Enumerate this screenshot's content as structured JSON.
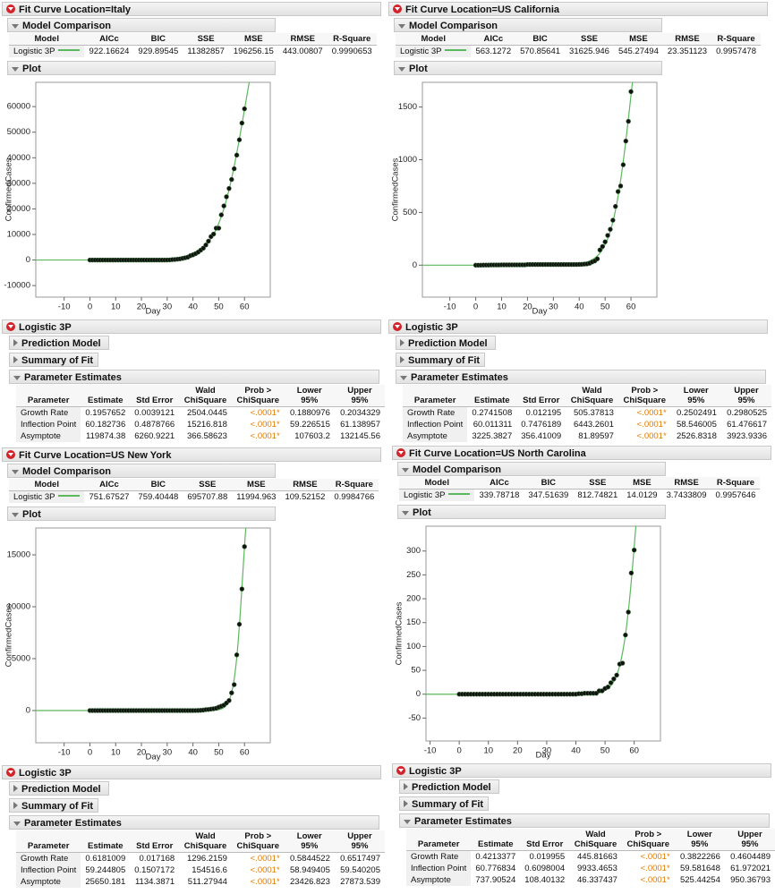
{
  "panels": [
    {
      "title": "Fit Curve Location=Italy",
      "model_comparison": {
        "title": "Model Comparison",
        "columns": [
          "Model",
          "AICc",
          "BIC",
          "SSE",
          "MSE",
          "RMSE",
          "R-Square"
        ],
        "rows": [
          [
            "Logistic 3P",
            922.16624,
            929.89545,
            11382857,
            196256.15,
            443.00807,
            0.9990653
          ]
        ]
      },
      "plot_title": "Plot",
      "fit_title": "Logistic 3P",
      "collapsed": [
        "Prediction Model",
        "Summary of Fit"
      ],
      "estimates": {
        "title": "Parameter Estimates",
        "columns": [
          "Parameter",
          "Estimate",
          "Std Error",
          "Wald ChiSquare",
          "Prob > ChiSquare",
          "Lower 95%",
          "Upper 95%"
        ],
        "rows": [
          [
            "Growth Rate",
            0.1957652,
            0.0039121,
            2504.0445,
            "<.0001*",
            0.1880976,
            0.2034329
          ],
          [
            "Inflection Point",
            60.182736,
            0.4878766,
            15216.818,
            "<.0001*",
            59.226515,
            61.138957
          ],
          [
            "Asymptote",
            119874.38,
            6260.9221,
            366.58623,
            "<.0001*",
            107603.2,
            132145.56
          ]
        ]
      },
      "chart_data": {
        "type": "scatter",
        "x_label": "Day",
        "y_label": "ConfirmedCases",
        "color": "#111111",
        "edge_color": "#2f5f2f",
        "curve_color": "#5cb85c",
        "xlim": [
          -21,
          70
        ],
        "ylim": [
          -14500,
          69500
        ],
        "xticks": [
          -10,
          0,
          10,
          20,
          30,
          40,
          50,
          60
        ],
        "yticks": [
          -10000,
          0,
          10000,
          20000,
          30000,
          40000,
          50000,
          60000
        ],
        "x": [
          0,
          1,
          2,
          3,
          4,
          5,
          6,
          7,
          8,
          9,
          10,
          11,
          12,
          13,
          14,
          15,
          16,
          17,
          18,
          19,
          20,
          21,
          22,
          23,
          24,
          25,
          26,
          27,
          28,
          29,
          30,
          31,
          32,
          33,
          34,
          35,
          36,
          37,
          38,
          39,
          40,
          41,
          42,
          43,
          44,
          45,
          46,
          47,
          48,
          49,
          50,
          51,
          52,
          53,
          54,
          55,
          56,
          57,
          58,
          59,
          60
        ],
        "values": [
          0,
          0,
          0,
          0,
          0,
          0,
          0,
          0,
          0,
          2,
          2,
          2,
          2,
          2,
          2,
          2,
          2,
          2,
          2,
          2,
          2,
          2,
          2,
          3,
          3,
          3,
          3,
          3,
          3,
          3,
          20,
          62,
          155,
          229,
          322,
          453,
          655,
          888,
          1128,
          1694,
          2036,
          2502,
          3089,
          3858,
          4636,
          5883,
          7375,
          9172,
          10149,
          12462,
          12462,
          17660,
          21157,
          24747,
          27980,
          31506,
          35713,
          41035,
          47021,
          53578,
          59138
        ]
      }
    },
    {
      "title": "Fit Curve Location=US California",
      "model_comparison": {
        "title": "Model Comparison",
        "columns": [
          "Model",
          "AICc",
          "BIC",
          "SSE",
          "MSE",
          "RMSE",
          "R-Square"
        ],
        "rows": [
          [
            "Logistic 3P",
            563.1272,
            570.85641,
            31625.946,
            545.27494,
            23.351123,
            0.9957478
          ]
        ]
      },
      "plot_title": "Plot",
      "fit_title": "Logistic 3P",
      "collapsed": [
        "Prediction Model",
        "Summary of Fit"
      ],
      "estimates": {
        "title": "Parameter Estimates",
        "columns": [
          "Parameter",
          "Estimate",
          "Std Error",
          "Wald ChiSquare",
          "Prob > ChiSquare",
          "Lower 95%",
          "Upper 95%"
        ],
        "rows": [
          [
            "Growth Rate",
            0.2741508,
            0.012195,
            505.37813,
            "<.0001*",
            0.2502491,
            0.2980525
          ],
          [
            "Inflection Point",
            60.011311,
            0.7476189,
            6443.2601,
            "<.0001*",
            58.546005,
            61.476617
          ],
          [
            "Asymptote",
            3225.3827,
            356.41009,
            81.89597,
            "<.0001*",
            2526.8318,
            3923.9336
          ]
        ]
      },
      "chart_data": {
        "type": "scatter",
        "x_label": "Day",
        "y_label": "ConfirmedCases",
        "color": "#111111",
        "edge_color": "#2f5f2f",
        "curve_color": "#5cb85c",
        "xlim": [
          -20.6,
          70
        ],
        "ylim": [
          -303,
          1734
        ],
        "xticks": [
          -10,
          0,
          10,
          20,
          30,
          40,
          50,
          60
        ],
        "yticks": [
          0,
          500,
          1000,
          1500
        ],
        "x": [
          0,
          1,
          2,
          3,
          4,
          5,
          6,
          7,
          8,
          9,
          10,
          11,
          12,
          13,
          14,
          15,
          16,
          17,
          18,
          19,
          20,
          21,
          22,
          23,
          24,
          25,
          26,
          27,
          28,
          29,
          30,
          31,
          32,
          33,
          34,
          35,
          36,
          37,
          38,
          39,
          40,
          41,
          42,
          43,
          44,
          45,
          46,
          47,
          48,
          49,
          50,
          51,
          52,
          53,
          54,
          55,
          56,
          57,
          58,
          59,
          60
        ],
        "values": [
          0,
          0,
          0,
          1,
          1,
          1,
          2,
          2,
          2,
          2,
          3,
          3,
          3,
          3,
          3,
          3,
          3,
          3,
          3,
          3,
          6,
          6,
          6,
          6,
          6,
          6,
          6,
          6,
          6,
          6,
          6,
          6,
          6,
          6,
          6,
          6,
          6,
          6,
          6,
          6,
          7,
          8,
          10,
          12,
          18,
          30,
          40,
          60,
          144,
          177,
          221,
          282,
          340,
          426,
          557,
          698,
          751,
          952,
          1177,
          1364,
          1646
        ]
      }
    },
    {
      "title": "Fit Curve Location=US New York",
      "model_comparison": {
        "title": "Model Comparison",
        "columns": [
          "Model",
          "AICc",
          "BIC",
          "SSE",
          "MSE",
          "RMSE",
          "R-Square"
        ],
        "rows": [
          [
            "Logistic 3P",
            751.67527,
            759.40448,
            695707.88,
            11994.963,
            109.52152,
            0.9984766
          ]
        ]
      },
      "plot_title": "Plot",
      "fit_title": "Logistic 3P",
      "collapsed": [
        "Prediction Model",
        "Summary of Fit"
      ],
      "estimates": {
        "title": "Parameter Estimates",
        "columns": [
          "Parameter",
          "Estimate",
          "Std Error",
          "Wald ChiSquare",
          "Prob > ChiSquare",
          "Lower 95%",
          "Upper 95%"
        ],
        "rows": [
          [
            "Growth Rate",
            0.6181009,
            0.017168,
            1296.2159,
            "<.0001*",
            0.5844522,
            0.6517497
          ],
          [
            "Inflection Point",
            59.244805,
            0.1507172,
            154516.6,
            "<.0001*",
            58.949405,
            59.540205
          ],
          [
            "Asymptote",
            25650.181,
            1134.3871,
            511.27944,
            "<.0001*",
            23426.823,
            27873.539
          ]
        ]
      },
      "chart_data": {
        "type": "scatter",
        "x_label": "Day",
        "y_label": "ConfirmedCases",
        "color": "#111111",
        "edge_color": "#2f5f2f",
        "curve_color": "#5cb85c",
        "xlim": [
          -21,
          70
        ],
        "ylim": [
          -3103,
          17586
        ],
        "xticks": [
          -10,
          0,
          10,
          20,
          30,
          40,
          50,
          60
        ],
        "yticks": [
          0,
          5000,
          10000,
          15000
        ],
        "x": [
          0,
          1,
          2,
          3,
          4,
          5,
          6,
          7,
          8,
          9,
          10,
          11,
          12,
          13,
          14,
          15,
          16,
          17,
          18,
          19,
          20,
          21,
          22,
          23,
          24,
          25,
          26,
          27,
          28,
          29,
          30,
          31,
          32,
          33,
          34,
          35,
          36,
          37,
          38,
          39,
          40,
          41,
          42,
          43,
          44,
          45,
          46,
          47,
          48,
          49,
          50,
          51,
          52,
          53,
          54,
          55,
          56,
          57,
          58,
          59,
          60
        ],
        "values": [
          0,
          0,
          0,
          0,
          0,
          0,
          0,
          0,
          0,
          0,
          0,
          0,
          0,
          0,
          0,
          0,
          0,
          0,
          0,
          0,
          0,
          0,
          0,
          0,
          0,
          0,
          0,
          0,
          0,
          0,
          0,
          0,
          0,
          0,
          0,
          0,
          0,
          0,
          0,
          1,
          1,
          2,
          11,
          22,
          44,
          89,
          106,
          142,
          173,
          220,
          328,
          421,
          525,
          732,
          967,
          1706,
          2495,
          5365,
          8310,
          11710,
          15793
        ]
      }
    },
    {
      "title": "Fit Curve Location=US North Carolina",
      "model_comparison": {
        "title": "Model Comparison",
        "columns": [
          "Model",
          "AICc",
          "BIC",
          "SSE",
          "MSE",
          "RMSE",
          "R-Square"
        ],
        "rows": [
          [
            "Logistic 3P",
            339.78718,
            347.51639,
            812.74821,
            14.0129,
            3.7433809,
            0.9957646
          ]
        ]
      },
      "plot_title": "Plot",
      "fit_title": "Logistic 3P",
      "collapsed": [
        "Prediction Model",
        "Summary of Fit"
      ],
      "estimates": {
        "title": "Parameter Estimates",
        "columns": [
          "Parameter",
          "Estimate",
          "Std Error",
          "Wald ChiSquare",
          "Prob > ChiSquare",
          "Lower 95%",
          "Upper 95%"
        ],
        "rows": [
          [
            "Growth Rate",
            0.4213377,
            0.019955,
            445.81663,
            "<.0001*",
            0.3822266,
            0.4604489
          ],
          [
            "Inflection Point",
            60.776834,
            0.6098004,
            9933.4653,
            "<.0001*",
            59.581648,
            61.972021
          ],
          [
            "Asymptote",
            737.90524,
            108.40132,
            46.337437,
            "<.0001*",
            525.44254,
            950.36793
          ]
        ]
      },
      "chart_data": {
        "type": "scatter",
        "x_label": "Day",
        "y_label": "ConfirmedCases",
        "color": "#111111",
        "edge_color": "#2f5f2f",
        "curve_color": "#5cb85c",
        "xlim": [
          -11.4,
          69
        ],
        "ylim": [
          -98,
          352
        ],
        "xticks": [
          -10,
          0,
          10,
          20,
          30,
          40,
          50,
          60
        ],
        "yticks": [
          -50,
          0,
          50,
          100,
          150,
          200,
          250,
          300
        ],
        "x": [
          0,
          1,
          2,
          3,
          4,
          5,
          6,
          7,
          8,
          9,
          10,
          11,
          12,
          13,
          14,
          15,
          16,
          17,
          18,
          19,
          20,
          21,
          22,
          23,
          24,
          25,
          26,
          27,
          28,
          29,
          30,
          31,
          32,
          33,
          34,
          35,
          36,
          37,
          38,
          39,
          40,
          41,
          42,
          43,
          44,
          45,
          46,
          47,
          48,
          49,
          50,
          51,
          52,
          53,
          54,
          55,
          56,
          57,
          58,
          59,
          60
        ],
        "values": [
          0,
          0,
          0,
          0,
          0,
          0,
          0,
          0,
          0,
          0,
          0,
          0,
          0,
          0,
          0,
          0,
          0,
          0,
          0,
          0,
          0,
          0,
          0,
          0,
          0,
          0,
          0,
          0,
          0,
          0,
          0,
          0,
          0,
          0,
          0,
          0,
          0,
          0,
          0,
          0,
          0,
          1,
          1,
          2,
          2,
          2,
          2,
          2,
          7,
          7,
          12,
          15,
          24,
          32,
          40,
          63,
          65,
          124,
          172,
          254,
          302
        ]
      }
    }
  ]
}
